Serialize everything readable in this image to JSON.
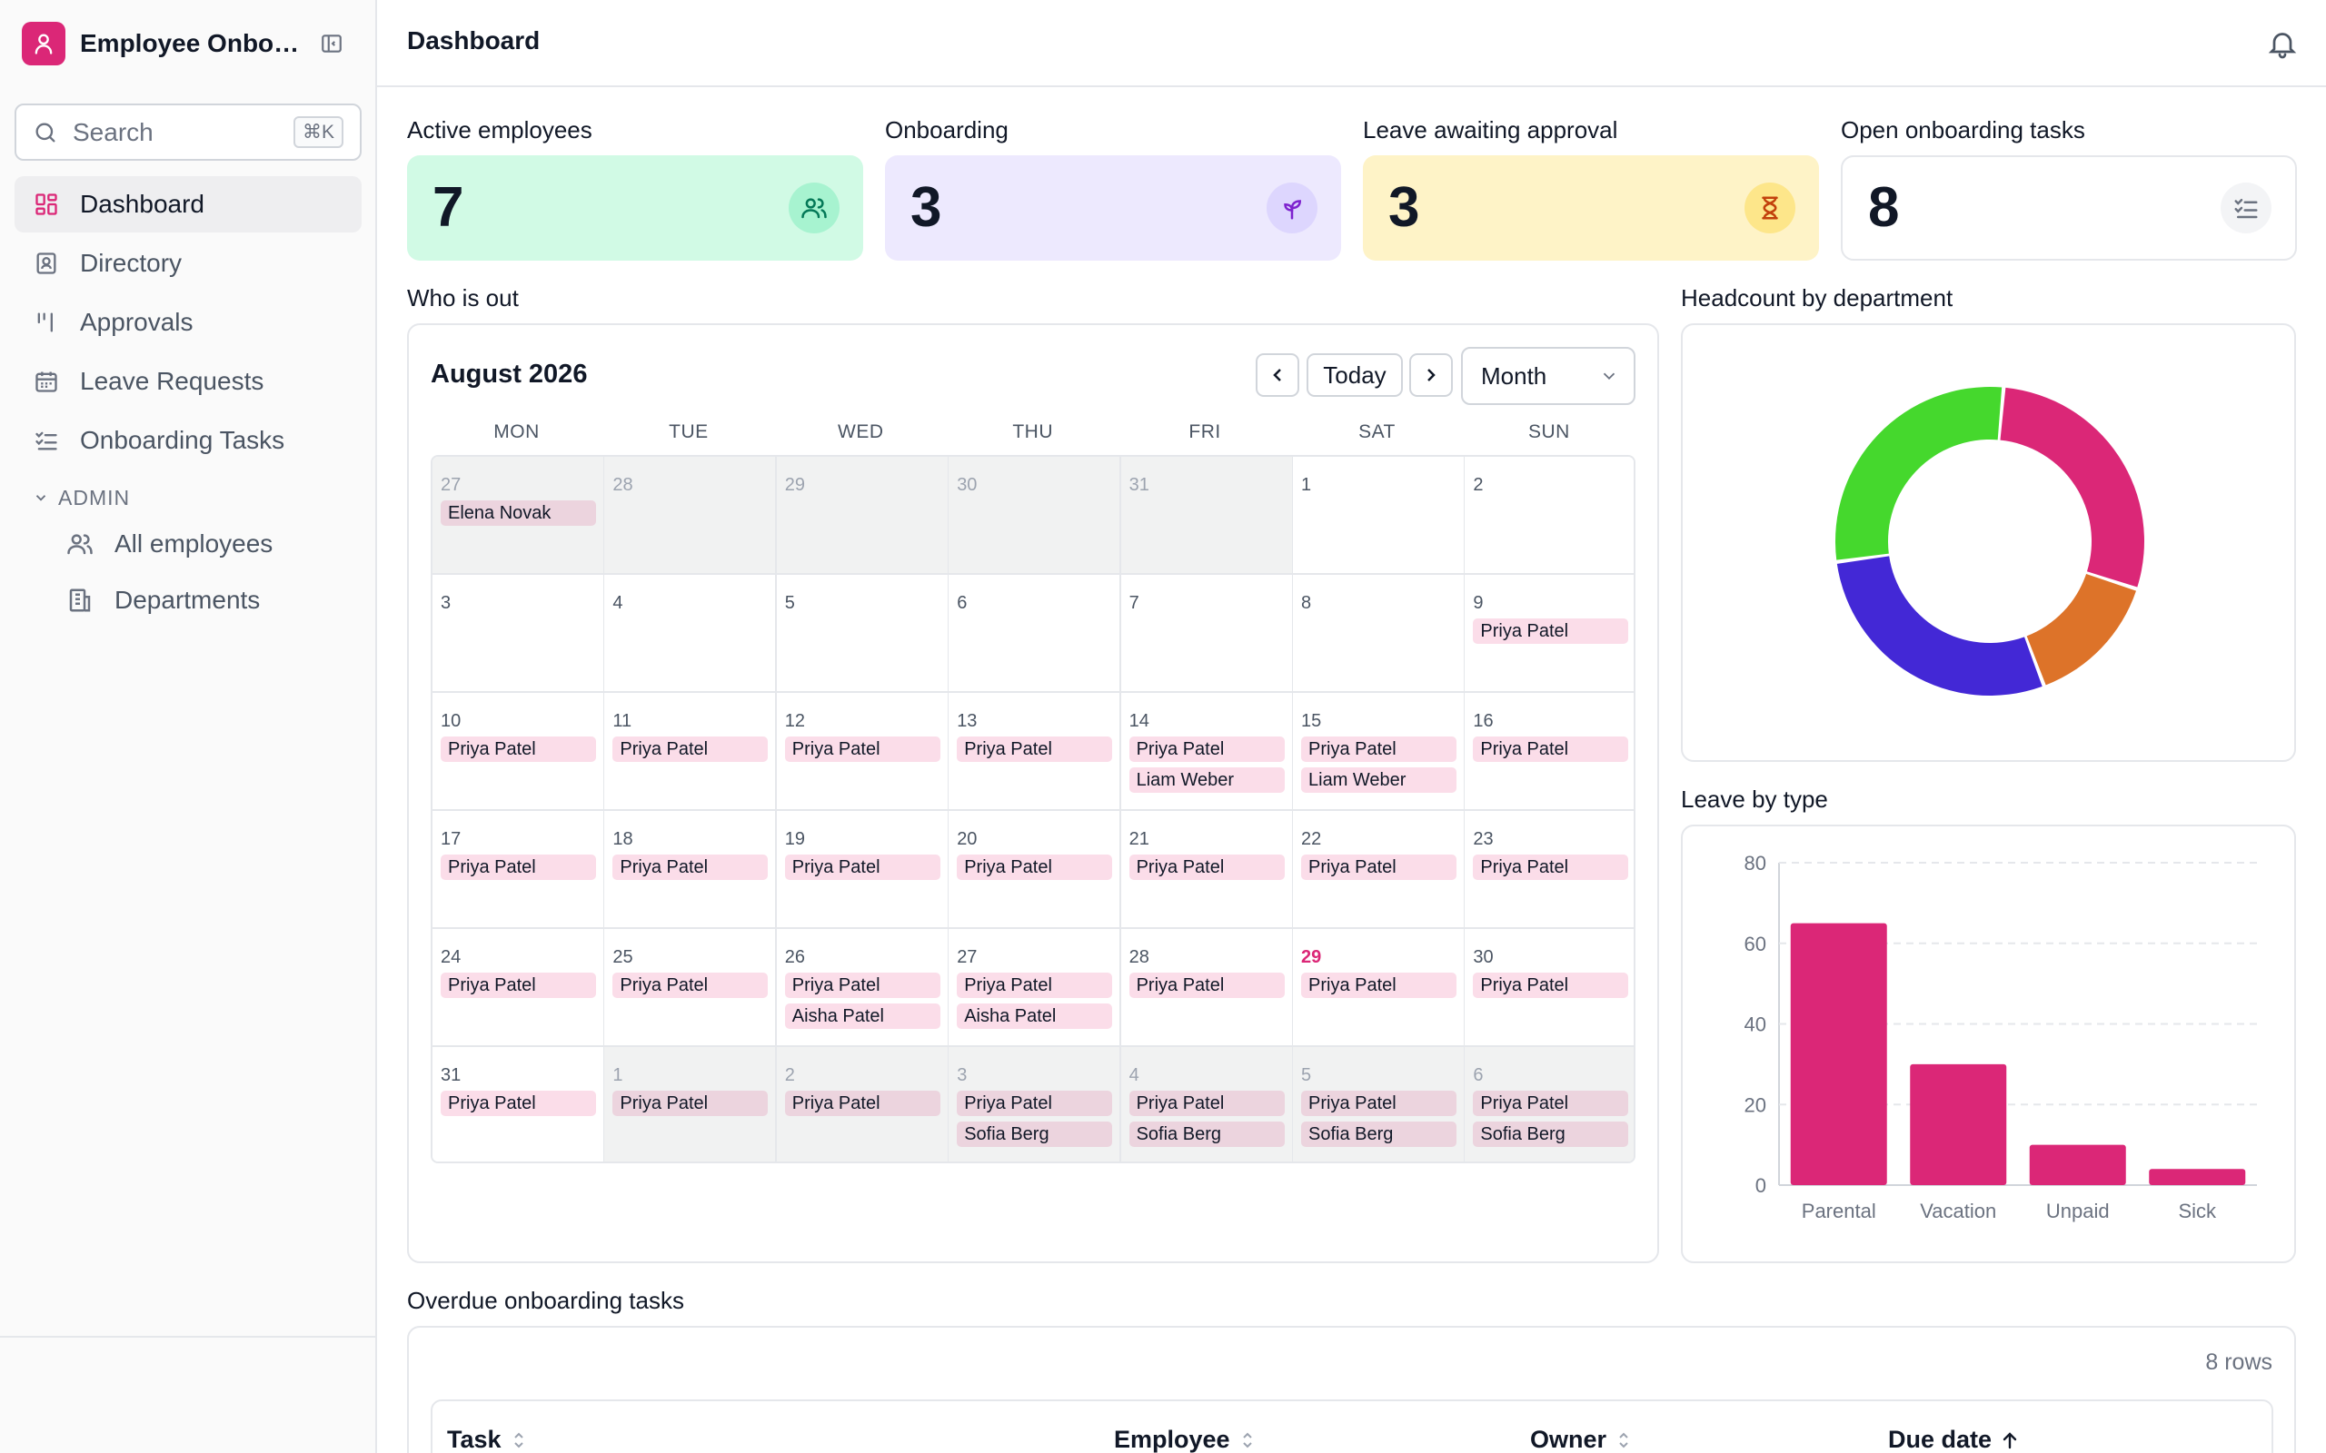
{
  "app": {
    "title": "Employee Onboarding"
  },
  "sidebar": {
    "search_placeholder": "Search",
    "search_shortcut": "⌘K",
    "items": [
      {
        "label": "Dashboard",
        "icon": "dashboard-icon"
      },
      {
        "label": "Directory",
        "icon": "contact-card-icon"
      },
      {
        "label": "Approvals",
        "icon": "approvals-icon"
      },
      {
        "label": "Leave Requests",
        "icon": "calendar-icon"
      },
      {
        "label": "Onboarding Tasks",
        "icon": "checklist-icon"
      }
    ],
    "admin_section": "ADMIN",
    "admin_items": [
      {
        "label": "All employees",
        "icon": "users-icon"
      },
      {
        "label": "Departments",
        "icon": "building-icon"
      }
    ]
  },
  "header": {
    "title": "Dashboard"
  },
  "kpis": [
    {
      "label": "Active employees",
      "value": "7",
      "color": "#d1fae5",
      "icon": "users-icon"
    },
    {
      "label": "Onboarding",
      "value": "3",
      "color": "#ede9fe",
      "icon": "sprout-icon"
    },
    {
      "label": "Leave awaiting approval",
      "value": "3",
      "color": "#fef3c7",
      "icon": "hourglass-icon"
    },
    {
      "label": "Open onboarding tasks",
      "value": "8",
      "color": "#ffffff",
      "icon": "checklist-icon"
    }
  ],
  "who_is_out": {
    "title": "Who is out",
    "month_label": "August 2026",
    "today_button": "Today",
    "view_select": "Month",
    "weekdays": [
      "MON",
      "TUE",
      "WED",
      "THU",
      "FRI",
      "SAT",
      "SUN"
    ],
    "weeks": [
      [
        {
          "d": "27",
          "out": true,
          "ev": [
            "Elena Novak"
          ]
        },
        {
          "d": "28",
          "out": true,
          "ev": []
        },
        {
          "d": "29",
          "out": true,
          "ev": []
        },
        {
          "d": "30",
          "out": true,
          "ev": []
        },
        {
          "d": "31",
          "out": true,
          "ev": []
        },
        {
          "d": "1",
          "ev": []
        },
        {
          "d": "2",
          "ev": []
        }
      ],
      [
        {
          "d": "3",
          "ev": []
        },
        {
          "d": "4",
          "ev": []
        },
        {
          "d": "5",
          "ev": []
        },
        {
          "d": "6",
          "ev": []
        },
        {
          "d": "7",
          "ev": []
        },
        {
          "d": "8",
          "ev": []
        },
        {
          "d": "9",
          "ev": [
            "Priya Patel"
          ]
        }
      ],
      [
        {
          "d": "10",
          "ev": [
            "Priya Patel"
          ]
        },
        {
          "d": "11",
          "ev": [
            "Priya Patel"
          ]
        },
        {
          "d": "12",
          "ev": [
            "Priya Patel"
          ]
        },
        {
          "d": "13",
          "ev": [
            "Priya Patel"
          ]
        },
        {
          "d": "14",
          "ev": [
            "Priya Patel",
            "Liam Weber"
          ]
        },
        {
          "d": "15",
          "ev": [
            "Priya Patel",
            "Liam Weber"
          ]
        },
        {
          "d": "16",
          "ev": [
            "Priya Patel"
          ]
        }
      ],
      [
        {
          "d": "17",
          "ev": [
            "Priya Patel"
          ]
        },
        {
          "d": "18",
          "ev": [
            "Priya Patel"
          ]
        },
        {
          "d": "19",
          "ev": [
            "Priya Patel"
          ]
        },
        {
          "d": "20",
          "ev": [
            "Priya Patel"
          ]
        },
        {
          "d": "21",
          "ev": [
            "Priya Patel"
          ]
        },
        {
          "d": "22",
          "ev": [
            "Priya Patel"
          ]
        },
        {
          "d": "23",
          "ev": [
            "Priya Patel"
          ]
        }
      ],
      [
        {
          "d": "24",
          "ev": [
            "Priya Patel"
          ]
        },
        {
          "d": "25",
          "ev": [
            "Priya Patel"
          ]
        },
        {
          "d": "26",
          "ev": [
            "Priya Patel",
            "Aisha Patel"
          ]
        },
        {
          "d": "27",
          "ev": [
            "Priya Patel",
            "Aisha Patel"
          ]
        },
        {
          "d": "28",
          "ev": [
            "Priya Patel"
          ]
        },
        {
          "d": "29",
          "today": true,
          "ev": [
            "Priya Patel"
          ]
        },
        {
          "d": "30",
          "ev": [
            "Priya Patel"
          ]
        }
      ],
      [
        {
          "d": "31",
          "ev": [
            "Priya Patel"
          ]
        },
        {
          "d": "1",
          "out": true,
          "ev": [
            "Priya Patel"
          ]
        },
        {
          "d": "2",
          "out": true,
          "ev": [
            "Priya Patel"
          ]
        },
        {
          "d": "3",
          "out": true,
          "ev": [
            "Priya Patel",
            "Sofia Berg"
          ]
        },
        {
          "d": "4",
          "out": true,
          "ev": [
            "Priya Patel",
            "Sofia Berg"
          ]
        },
        {
          "d": "5",
          "out": true,
          "ev": [
            "Priya Patel",
            "Sofia Berg"
          ]
        },
        {
          "d": "6",
          "out": true,
          "ev": [
            "Priya Patel",
            "Sofia Berg"
          ]
        }
      ]
    ]
  },
  "chart_data": [
    {
      "type": "pie",
      "title": "Headcount by department",
      "donut": true,
      "slices": [
        {
          "value": 2,
          "color": "#db2777"
        },
        {
          "value": 1,
          "color": "#dd7329"
        },
        {
          "value": 2,
          "color": "#4328d6"
        },
        {
          "value": 2,
          "color": "#45d82d"
        }
      ]
    },
    {
      "type": "bar",
      "title": "Leave by type",
      "categories": [
        "Parental",
        "Vacation",
        "Unpaid",
        "Sick"
      ],
      "values": [
        65,
        30,
        10,
        4
      ],
      "ylim": [
        0,
        80
      ],
      "yticks": [
        0,
        20,
        40,
        60,
        80
      ],
      "color": "#db2777",
      "grid": true
    }
  ],
  "overdue": {
    "title": "Overdue onboarding tasks",
    "rows_label": "8 rows",
    "columns": [
      "Task",
      "Employee",
      "Owner",
      "Due date"
    ]
  }
}
